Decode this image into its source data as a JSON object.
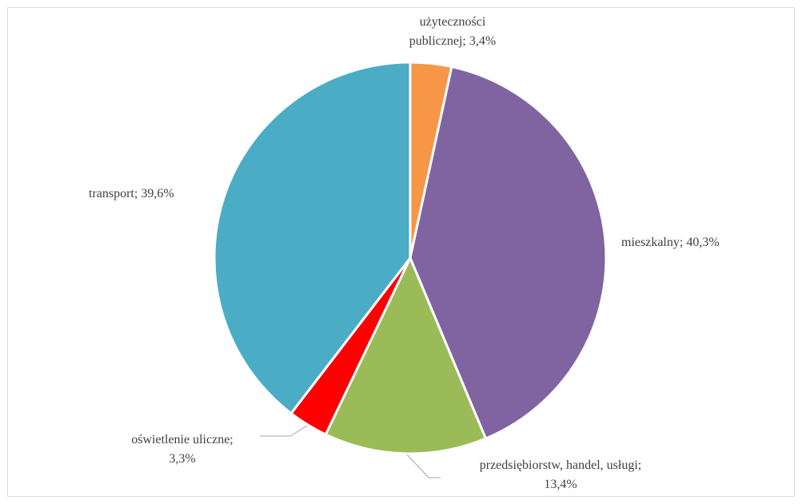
{
  "chart_data": {
    "type": "pie",
    "title": "",
    "start_angle_deg": 0,
    "direction": "clockwise",
    "legend": "none",
    "slices": [
      {
        "label": "użyteczności publicznej",
        "value": 3.4,
        "value_label": "3,4%",
        "color": "#F79646"
      },
      {
        "label": "mieszkalny",
        "value": 40.3,
        "value_label": "40,3%",
        "color": "#8064A2"
      },
      {
        "label": "przedsiębiorstw, handel, usługi",
        "value": 13.4,
        "value_label": "13,4%",
        "color": "#9BBB59"
      },
      {
        "label": "oświetlenie uliczne",
        "value": 3.3,
        "value_label": "3,3%",
        "color": "#FF0000"
      },
      {
        "label": "transport",
        "value": 39.6,
        "value_label": "39,6%",
        "color": "#4BACC6"
      }
    ],
    "data_labels": [
      {
        "lines": [
          "użyteczności",
          "publicznej; 3,4%"
        ]
      },
      {
        "lines": [
          "mieszkalny; 40,3%"
        ]
      },
      {
        "lines": [
          "przedsiębiorstw, handel, usługi;",
          "13,4%"
        ]
      },
      {
        "lines": [
          "oświetlenie uliczne;",
          "3,3%"
        ]
      },
      {
        "lines": [
          "transport; 39,6%"
        ]
      }
    ]
  }
}
